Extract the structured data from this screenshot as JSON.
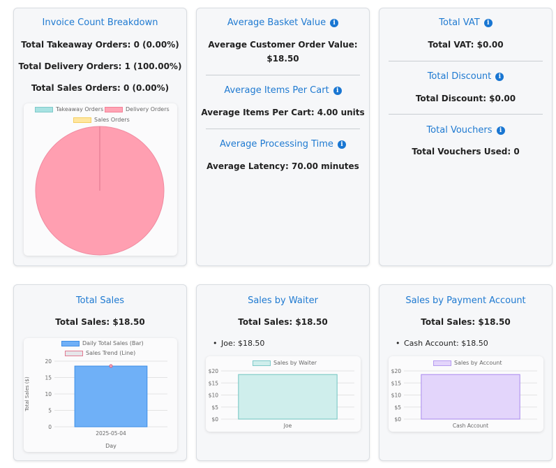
{
  "invoice": {
    "title": "Invoice Count Breakdown",
    "takeaway": "Total Takeaway Orders: 0 (0.00%)",
    "delivery": "Total Delivery Orders: 1 (100.00%)",
    "sales": "Total Sales Orders: 0 (0.00%)"
  },
  "basket": {
    "title": "Average Basket Value",
    "value_line1": "Average Customer Order Value:",
    "value_line2": "$18.50",
    "items_title": "Average Items Per Cart",
    "items_value": "Average Items Per Cart: 4.00 units",
    "proc_title": "Average Processing Time",
    "proc_value": "Average Latency: 70.00 minutes"
  },
  "vat": {
    "title": "Total VAT",
    "value": "Total VAT: $0.00",
    "discount_title": "Total Discount",
    "discount_value": "Total Discount: $0.00",
    "vouchers_title": "Total Vouchers",
    "vouchers_value": "Total Vouchers Used: 0"
  },
  "total_sales": {
    "title": "Total Sales",
    "value": "Total Sales: $18.50"
  },
  "waiter": {
    "title": "Sales by Waiter",
    "value": "Total Sales: $18.50",
    "list": [
      "Joe: $18.50"
    ]
  },
  "payment": {
    "title": "Sales by Payment Account",
    "value": "Total Sales: $18.50",
    "list": [
      "Cash Account: $18.50"
    ]
  },
  "colors": {
    "pie_delivery": "#ff9fb1",
    "takeaway": "#8fd6d6",
    "sales_orders": "#ffe08a",
    "bar_blue": "#6fb0f7",
    "waiter_fill": "#cfeeec",
    "account_fill": "#e3d5fb"
  },
  "chart_data": [
    {
      "type": "pie",
      "legend": [
        "Takeaway Orders",
        "Delivery Orders",
        "Sales Orders"
      ],
      "values": [
        0,
        1,
        0
      ]
    },
    {
      "type": "bar",
      "categories": [
        "2025-05-04"
      ],
      "series": [
        {
          "name": "Daily Total Sales (Bar)",
          "values": [
            18.5
          ]
        },
        {
          "name": "Sales Trend (Line)",
          "values": [
            18.5
          ]
        }
      ],
      "xlabel": "Day",
      "ylabel": "Total Sales ($)",
      "ylim": [
        0,
        20
      ],
      "yticks": [
        "0",
        "5",
        "10",
        "15",
        "20"
      ]
    },
    {
      "type": "bar",
      "categories": [
        "Joe"
      ],
      "series": [
        {
          "name": "Sales by Waiter",
          "values": [
            18.5
          ]
        }
      ],
      "ylim": [
        0,
        20
      ],
      "yticks": [
        "$0",
        "$5",
        "$10",
        "$15",
        "$20"
      ]
    },
    {
      "type": "bar",
      "categories": [
        "Cash Account"
      ],
      "series": [
        {
          "name": "Sales by Account",
          "values": [
            18.5
          ]
        }
      ],
      "ylim": [
        0,
        20
      ],
      "yticks": [
        "$0",
        "$5",
        "$10",
        "$15",
        "$20"
      ]
    }
  ]
}
